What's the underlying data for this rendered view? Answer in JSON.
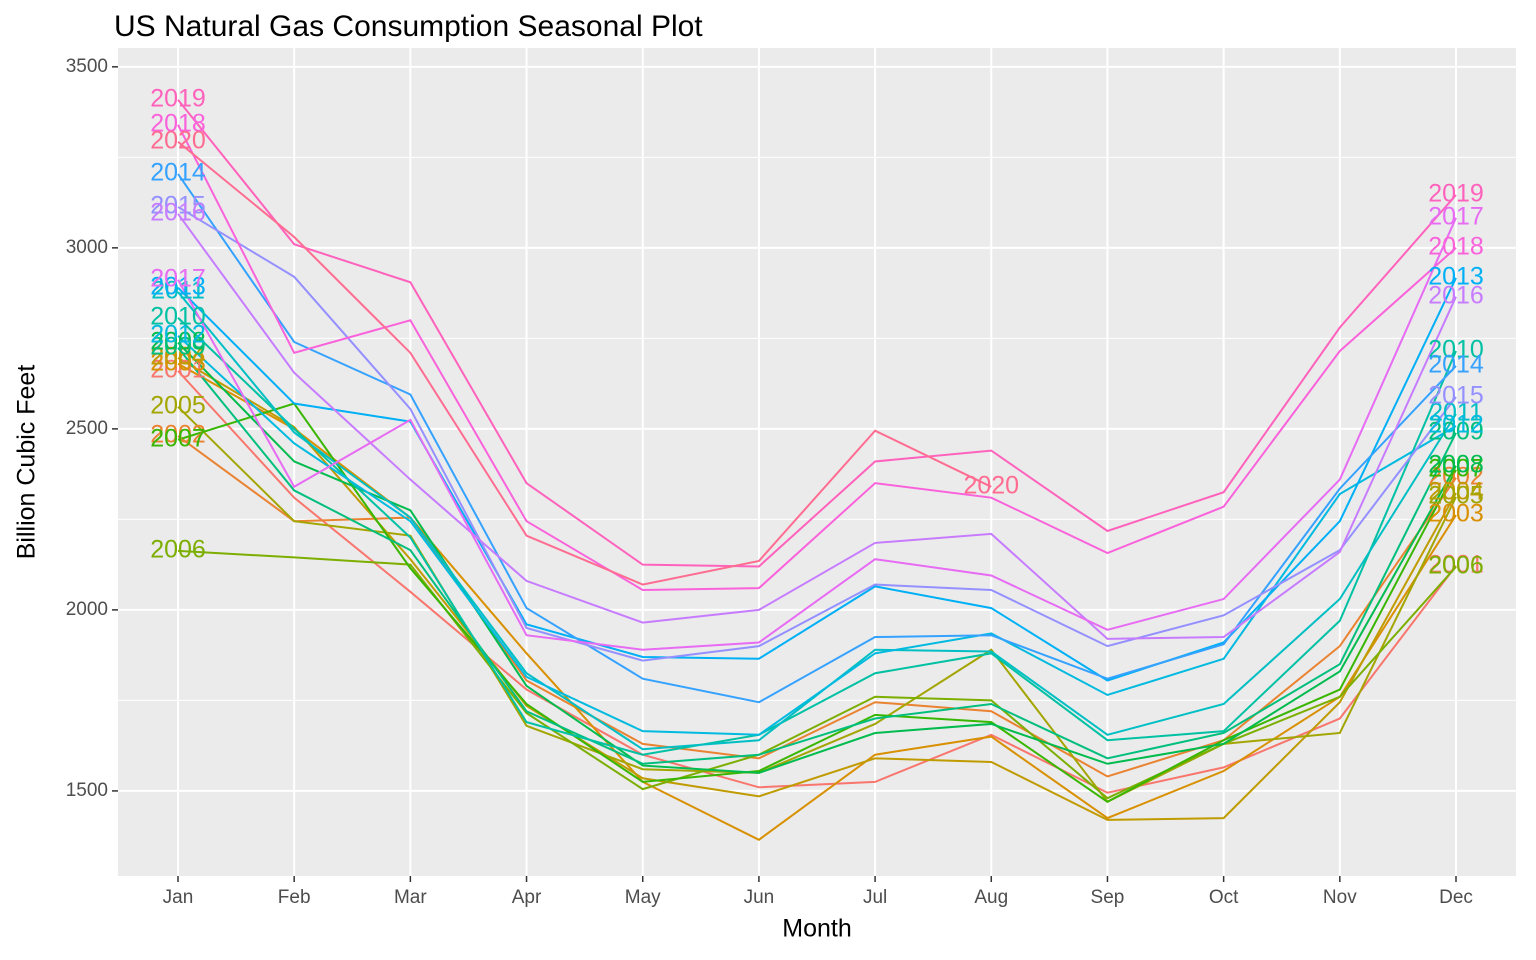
{
  "chart_data": {
    "type": "line",
    "title": "US Natural Gas Consumption Seasonal Plot",
    "x_label": "Month",
    "y_label": "Billion Cubic Feet",
    "categories": [
      "Jan",
      "Feb",
      "Mar",
      "Apr",
      "May",
      "Jun",
      "Jul",
      "Aug",
      "Sep",
      "Oct",
      "Nov",
      "Dec"
    ],
    "ylim": [
      1265,
      3552
    ],
    "yticks": [
      1500,
      2000,
      2500,
      3000,
      3500
    ],
    "grid": true,
    "series": [
      {
        "name": "2001",
        "color": "#F8766D",
        "values": [
          2660,
          2310,
          2050,
          1780,
          1600,
          1510,
          1525,
          1655,
          1495,
          1565,
          1700,
          2122
        ]
      },
      {
        "name": "2002",
        "color": "#EA8331",
        "values": [
          2480,
          2245,
          2255,
          1805,
          1630,
          1590,
          1745,
          1720,
          1540,
          1640,
          1900,
          2365
        ]
      },
      {
        "name": "2003",
        "color": "#D89000",
        "values": [
          2680,
          2500,
          2255,
          1880,
          1525,
          1365,
          1600,
          1650,
          1425,
          1555,
          1760,
          2262
        ]
      },
      {
        "name": "2004",
        "color": "#C09B00",
        "values": [
          2696,
          2505,
          2140,
          1735,
          1535,
          1485,
          1590,
          1580,
          1420,
          1425,
          1745,
          2323
        ]
      },
      {
        "name": "2005",
        "color": "#A3A500",
        "values": [
          2561,
          2245,
          2205,
          1680,
          1560,
          1550,
          1685,
          1890,
          1470,
          1630,
          1660,
          2312
        ]
      },
      {
        "name": "2006",
        "color": "#7CAE00",
        "values": [
          2163,
          2145,
          2125,
          1715,
          1505,
          1600,
          1760,
          1750,
          1480,
          1630,
          1760,
          2119
        ]
      },
      {
        "name": "2007",
        "color": "#39B600",
        "values": [
          2470,
          2570,
          2115,
          1740,
          1525,
          1555,
          1710,
          1690,
          1470,
          1640,
          1780,
          2387
        ]
      },
      {
        "name": "2008",
        "color": "#00BB4E",
        "values": [
          2738,
          2410,
          2275,
          1790,
          1570,
          1550,
          1660,
          1685,
          1575,
          1630,
          1830,
          2398
        ]
      },
      {
        "name": "2009",
        "color": "#00BF7D",
        "values": [
          2724,
          2330,
          2165,
          1720,
          1575,
          1600,
          1700,
          1740,
          1590,
          1660,
          1850,
          2489
        ]
      },
      {
        "name": "2010",
        "color": "#00C1A3",
        "values": [
          2807,
          2500,
          2200,
          1690,
          1600,
          1655,
          1825,
          1880,
          1640,
          1665,
          1970,
          2715
        ]
      },
      {
        "name": "2011",
        "color": "#00BFC4",
        "values": [
          2878,
          2490,
          2255,
          1825,
          1615,
          1640,
          1890,
          1885,
          1655,
          1740,
          2030,
          2541
        ]
      },
      {
        "name": "2012",
        "color": "#00BAE0",
        "values": [
          2757,
          2460,
          2245,
          1815,
          1665,
          1655,
          1880,
          1935,
          1765,
          1865,
          2320,
          2508
        ]
      },
      {
        "name": "2013",
        "color": "#00B0F6",
        "values": [
          2890,
          2570,
          2520,
          1960,
          1870,
          1865,
          2065,
          2005,
          1805,
          1910,
          2245,
          2917
        ]
      },
      {
        "name": "2014",
        "color": "#35A2FF",
        "values": [
          3204,
          2740,
          2595,
          2005,
          1810,
          1745,
          1925,
          1930,
          1810,
          1905,
          2335,
          2674
        ]
      },
      {
        "name": "2015",
        "color": "#9590FF",
        "values": [
          3113,
          2920,
          2555,
          1950,
          1860,
          1900,
          2070,
          2055,
          1900,
          1985,
          2165,
          2588
        ]
      },
      {
        "name": "2016",
        "color": "#C77CFF",
        "values": [
          3094,
          2655,
          2360,
          2080,
          1965,
          2000,
          2185,
          2210,
          1920,
          1925,
          2160,
          2865
        ]
      },
      {
        "name": "2017",
        "color": "#E76BF3",
        "values": [
          2912,
          2340,
          2525,
          1930,
          1890,
          1910,
          2140,
          2095,
          1945,
          2030,
          2360,
          3083
        ]
      },
      {
        "name": "2018",
        "color": "#FA62DB",
        "values": [
          3340,
          2710,
          2800,
          2245,
          2055,
          2060,
          2350,
          2310,
          2157,
          2285,
          2715,
          3000
        ]
      },
      {
        "name": "2019",
        "color": "#FF62BC",
        "values": [
          3409,
          3010,
          2905,
          2350,
          2125,
          2120,
          2410,
          2440,
          2218,
          2325,
          2780,
          3146
        ]
      },
      {
        "name": "2020",
        "color": "#FF6C91",
        "values": [
          3293,
          3030,
          2710,
          2205,
          2070,
          2135,
          2495,
          2340,
          null,
          null,
          null,
          null
        ]
      }
    ]
  }
}
